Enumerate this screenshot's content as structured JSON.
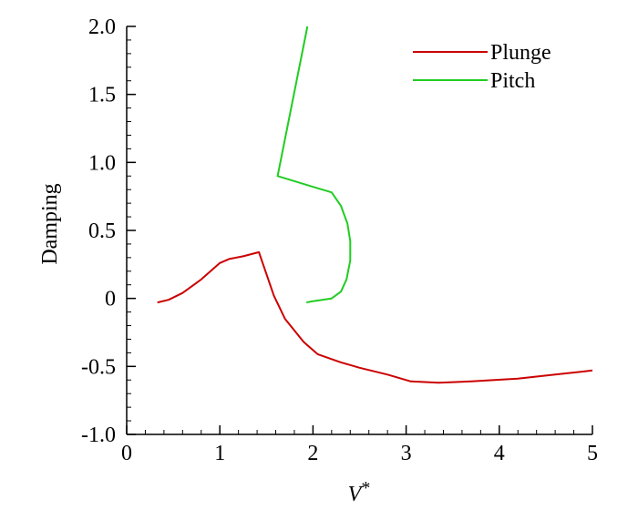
{
  "chart_data": {
    "type": "line",
    "xlabel": "V*",
    "ylabel": "Damping",
    "xlim": [
      0,
      5
    ],
    "ylim": [
      -1.0,
      2.0
    ],
    "xticks": [
      0,
      1,
      2,
      3,
      4,
      5
    ],
    "xtick_labels": [
      "0",
      "1",
      "2",
      "3",
      "4",
      "5"
    ],
    "yticks": [
      -1.0,
      -0.5,
      0,
      0.5,
      1.0,
      1.5,
      2.0
    ],
    "ytick_labels": [
      "-1.0",
      "-0.5",
      "0",
      "0.5",
      "1.0",
      "1.5",
      "2.0"
    ],
    "grid": false,
    "legend_position": "top-right",
    "series": [
      {
        "name": "Plunge",
        "color": "#cc0000",
        "x": [
          0.33,
          0.45,
          0.6,
          0.8,
          1.0,
          1.1,
          1.25,
          1.42,
          1.5,
          1.58,
          1.7,
          1.9,
          2.05,
          2.3,
          2.5,
          2.8,
          3.05,
          3.35,
          3.7,
          4.2,
          4.6,
          5.0
        ],
        "y": [
          -0.03,
          -0.01,
          0.04,
          0.14,
          0.26,
          0.29,
          0.31,
          0.34,
          0.18,
          0.02,
          -0.15,
          -0.32,
          -0.41,
          -0.47,
          -0.51,
          -0.56,
          -0.61,
          -0.62,
          -0.61,
          -0.59,
          -0.56,
          -0.53
        ]
      },
      {
        "name": "Pitch",
        "color": "#22cc22",
        "x": [
          1.94,
          1.62,
          2.05,
          2.2,
          2.3,
          2.37,
          2.4,
          2.4,
          2.36,
          2.3,
          2.2,
          2.1,
          2.0,
          1.93
        ],
        "y": [
          2.0,
          0.9,
          0.81,
          0.78,
          0.68,
          0.55,
          0.42,
          0.28,
          0.14,
          0.05,
          0.0,
          -0.01,
          -0.02,
          -0.03
        ]
      }
    ]
  }
}
